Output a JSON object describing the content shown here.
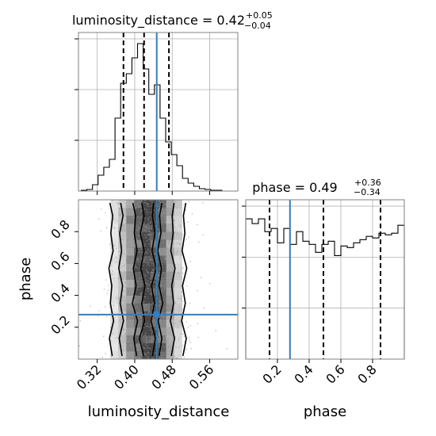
{
  "colors": {
    "truth": "#3a7cb8",
    "hist": "#000000",
    "quantile": "#000000",
    "scatter": "#9a9a9a",
    "grid": "#b0b0b0"
  },
  "chart_data": [
    {
      "id": "luminosity_distance_marginal",
      "type": "bar",
      "subtype": "step-histogram",
      "title": {
        "prefix": "luminosity_distance = 0.42",
        "plus": "+0.05",
        "minus": "−0.04"
      },
      "xlim": [
        0.28,
        0.62
      ],
      "ylim": [
        0,
        1
      ],
      "bin_edges": [
        0.286,
        0.298,
        0.31,
        0.322,
        0.334,
        0.346,
        0.358,
        0.37,
        0.382,
        0.394,
        0.406,
        0.418,
        0.43,
        0.442,
        0.454,
        0.466,
        0.478,
        0.49,
        0.502,
        0.514,
        0.526,
        0.538,
        0.55,
        0.562,
        0.574,
        0.586
      ],
      "values": [
        0.005,
        0.01,
        0.04,
        0.1,
        0.15,
        0.2,
        0.46,
        0.68,
        0.74,
        0.84,
        0.93,
        0.77,
        0.61,
        0.67,
        0.46,
        0.31,
        0.23,
        0.16,
        0.08,
        0.05,
        0.03,
        0.015,
        0.01,
        0.005,
        0.005
      ],
      "quantiles": [
        0.376,
        0.42,
        0.473
      ],
      "truth": 0.447,
      "grid_x": [
        0.32,
        0.4,
        0.48,
        0.56
      ],
      "grid_y": [
        0.32,
        0.64,
        0.96
      ],
      "show_y_ticklabels": false
    },
    {
      "id": "luminosity_distance_vs_phase",
      "type": "scatter",
      "subtype": "2d-density-contour",
      "xlim": [
        0.28,
        0.62
      ],
      "ylim": [
        0.0,
        1.0
      ],
      "xlabel": "luminosity_distance",
      "ylabel": "phase",
      "xticks": [
        {
          "value": 0.32,
          "label": "0.32"
        },
        {
          "value": 0.4,
          "label": "0.40"
        },
        {
          "value": 0.48,
          "label": "0.48"
        },
        {
          "value": 0.56,
          "label": "0.56"
        }
      ],
      "yticks": [
        {
          "value": 0.2,
          "label": "0.2"
        },
        {
          "value": 0.4,
          "label": "0.4"
        },
        {
          "value": 0.6,
          "label": "0.6"
        },
        {
          "value": 0.8,
          "label": "0.8"
        }
      ],
      "distribution": {
        "x_mean": 0.43,
        "x_sd": 0.038,
        "samples": 900
      },
      "contour_levels": [
        {
          "left": [
            0.419,
            0.41,
            0.421,
            0.415,
            0.422,
            0.413,
            0.42,
            0.412,
            0.42,
            0.415
          ],
          "right": [
            0.438,
            0.444,
            0.435,
            0.442,
            0.436,
            0.446,
            0.437,
            0.443,
            0.438,
            0.44
          ]
        },
        {
          "left": [
            0.404,
            0.398,
            0.406,
            0.395,
            0.403,
            0.397,
            0.405,
            0.399,
            0.402,
            0.396
          ],
          "right": [
            0.452,
            0.458,
            0.45,
            0.46,
            0.452,
            0.457,
            0.449,
            0.456,
            0.453,
            0.458
          ]
        },
        {
          "left": [
            0.373,
            0.367,
            0.376,
            0.369,
            0.374,
            0.366,
            0.372,
            0.368,
            0.375,
            0.37
          ],
          "right": [
            0.478,
            0.485,
            0.476,
            0.483,
            0.479,
            0.486,
            0.477,
            0.482,
            0.48,
            0.484
          ]
        },
        {
          "left": [
            0.352,
            0.346,
            0.355,
            0.348,
            0.351,
            0.345,
            0.354,
            0.349,
            0.353,
            0.347
          ],
          "right": [
            0.503,
            0.51,
            0.5,
            0.508,
            0.502,
            0.511,
            0.501,
            0.507,
            0.504,
            0.509
          ]
        }
      ],
      "contour_y": [
        0.02,
        0.13,
        0.24,
        0.35,
        0.46,
        0.57,
        0.68,
        0.79,
        0.9,
        0.98
      ],
      "truth": {
        "x": 0.447,
        "y": 0.279
      }
    },
    {
      "id": "phase_marginal",
      "type": "bar",
      "subtype": "step-histogram",
      "title": {
        "prefix": "phase = 0.49",
        "plus": "+0.36",
        "minus": "−0.34"
      },
      "xlim": [
        0.0,
        1.0
      ],
      "ylim": [
        0,
        1
      ],
      "xlabel": "phase",
      "xticks": [
        {
          "value": 0.2,
          "label": "0.2"
        },
        {
          "value": 0.4,
          "label": "0.4"
        },
        {
          "value": 0.6,
          "label": "0.6"
        },
        {
          "value": 0.8,
          "label": "0.8"
        }
      ],
      "bin_edges": [
        0.0,
        0.04,
        0.08,
        0.12,
        0.16,
        0.2,
        0.24,
        0.28,
        0.32,
        0.36,
        0.4,
        0.44,
        0.48,
        0.52,
        0.56,
        0.6,
        0.64,
        0.68,
        0.72,
        0.76,
        0.8,
        0.84,
        0.88,
        0.92,
        0.96,
        1.0
      ],
      "values": [
        0.88,
        0.85,
        0.88,
        0.8,
        0.82,
        0.73,
        0.82,
        0.72,
        0.8,
        0.74,
        0.72,
        0.67,
        0.72,
        0.74,
        0.65,
        0.71,
        0.7,
        0.73,
        0.75,
        0.77,
        0.76,
        0.79,
        0.78,
        0.79,
        0.84
      ],
      "quantiles": [
        0.15,
        0.49,
        0.85
      ],
      "truth": 0.279,
      "grid_x": [
        0.2,
        0.4,
        0.6,
        0.8
      ],
      "grid_y": [
        0.32,
        0.64,
        0.96
      ],
      "show_y_ticklabels": false
    }
  ]
}
